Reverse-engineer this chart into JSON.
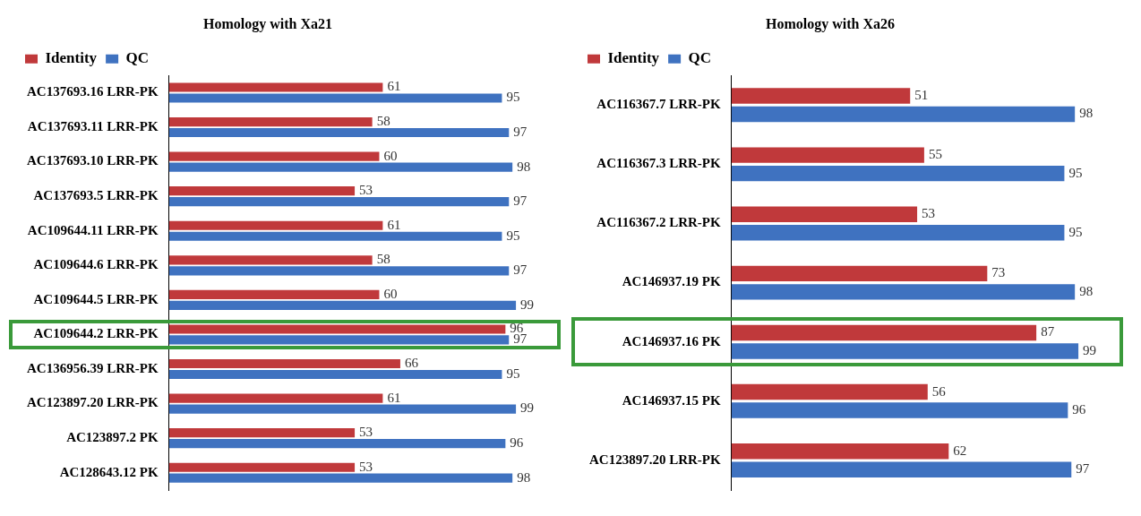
{
  "chart_data": [
    {
      "type": "bar",
      "orientation": "horizontal",
      "title": "Homology with Xa21",
      "categories": [
        "AC137693.16 LRR-PK",
        "AC137693.11 LRR-PK",
        "AC137693.10 LRR-PK",
        "AC137693.5 LRR-PK",
        "AC109644.11 LRR-PK",
        "AC109644.6 LRR-PK",
        "AC109644.5 LRR-PK",
        "AC109644.2 LRR-PK",
        "AC136956.39 LRR-PK",
        "AC123897.20 LRR-PK",
        "AC123897.2 PK",
        "AC128643.12 PK"
      ],
      "series": [
        {
          "name": "Identity",
          "color": "#c0393b",
          "values": [
            61,
            58,
            60,
            53,
            61,
            58,
            60,
            96,
            66,
            61,
            53,
            53
          ]
        },
        {
          "name": "QC",
          "color": "#3f72c0",
          "values": [
            95,
            97,
            98,
            97,
            95,
            97,
            99,
            97,
            95,
            99,
            96,
            98
          ]
        }
      ],
      "data_labels": true,
      "legend": "top left",
      "grid": false,
      "tick_labels": "y"
    },
    {
      "type": "bar",
      "orientation": "horizontal",
      "title": "Homology with Xa26",
      "categories": [
        "AC116367.7 LRR-PK",
        "AC116367.3 LRR-PK",
        "AC116367.2 LRR-PK",
        "AC146937.19 PK",
        "AC146937.16 PK",
        "AC146937.15 PK",
        "AC123897.20 LRR-PK"
      ],
      "series": [
        {
          "name": "Identity",
          "color": "#c0393b",
          "values": [
            51,
            55,
            53,
            73,
            87,
            56,
            62
          ]
        },
        {
          "name": "QC",
          "color": "#3f72c0",
          "values": [
            98,
            95,
            95,
            98,
            99,
            96,
            97
          ]
        }
      ],
      "data_labels": true,
      "legend": "top left",
      "grid": false,
      "tick_labels": "y"
    }
  ]
}
